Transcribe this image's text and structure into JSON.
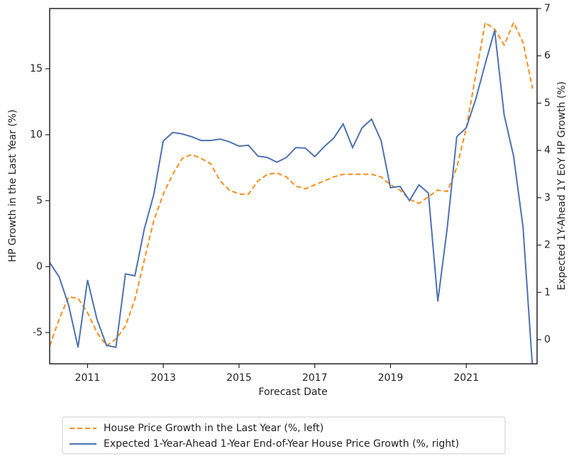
{
  "chart_data": {
    "type": "line",
    "xlabel": "Forecast Date",
    "ylabel": "HP Growth in the Last Year (%)",
    "y2label": "Expected 1Y-Ahead 1Y EoY HP Growth (%)",
    "x": [
      2010.0,
      2010.25,
      2010.5,
      2010.75,
      2011.0,
      2011.25,
      2011.5,
      2011.75,
      2012.0,
      2012.25,
      2012.5,
      2012.75,
      2013.0,
      2013.25,
      2013.5,
      2013.75,
      2014.0,
      2014.25,
      2014.5,
      2014.75,
      2015.0,
      2015.25,
      2015.5,
      2015.75,
      2016.0,
      2016.25,
      2016.5,
      2016.75,
      2017.0,
      2017.25,
      2017.5,
      2017.75,
      2018.0,
      2018.25,
      2018.5,
      2018.75,
      2019.0,
      2019.25,
      2019.5,
      2019.75,
      2020.0,
      2020.25,
      2020.5,
      2020.75,
      2021.0,
      2021.25,
      2021.5,
      2021.75,
      2022.0,
      2022.25,
      2022.5,
      2022.75
    ],
    "series": [
      {
        "name": "House Price Growth in the Last Year (%, left)",
        "color": "#ff8c1a",
        "dash": true,
        "axis": "y",
        "values": [
          -6.0,
          -4.0,
          -2.3,
          -2.4,
          -3.5,
          -5.0,
          -6.0,
          -5.5,
          -4.5,
          -2.5,
          0.5,
          3.5,
          5.5,
          7.0,
          8.2,
          8.5,
          8.2,
          7.8,
          6.5,
          5.8,
          5.5,
          5.5,
          6.5,
          7.0,
          7.1,
          6.8,
          6.1,
          5.9,
          6.2,
          6.5,
          6.8,
          7.0,
          7.0,
          7.0,
          7.0,
          6.8,
          6.2,
          5.8,
          5.1,
          4.8,
          5.3,
          5.8,
          5.7,
          7.5,
          10.5,
          14.5,
          18.5,
          18.0,
          16.8,
          18.5,
          17.0,
          13.5
        ]
      },
      {
        "name": "Expected 1-Year-Ahead 1-Year End-of-Year House Price Growth (%, right)",
        "color": "#4c72b0",
        "dash": false,
        "axis": "y2",
        "values": [
          1.63,
          1.33,
          0.73,
          -0.16,
          1.26,
          0.43,
          -0.12,
          -0.16,
          1.39,
          1.35,
          2.34,
          3.07,
          4.2,
          4.38,
          4.35,
          4.29,
          4.21,
          4.21,
          4.24,
          4.18,
          4.09,
          4.11,
          3.88,
          3.85,
          3.75,
          3.85,
          4.06,
          4.05,
          3.87,
          4.08,
          4.26,
          4.56,
          4.06,
          4.48,
          4.66,
          4.21,
          3.21,
          3.24,
          2.94,
          3.27,
          3.1,
          0.81,
          2.38,
          4.29,
          4.48,
          5.08,
          5.83,
          6.54,
          4.75,
          3.88,
          2.38,
          -0.6
        ]
      }
    ],
    "xlim": [
      2010.0,
      2022.87
    ],
    "xticks": [
      2011,
      2013,
      2015,
      2017,
      2019,
      2021
    ],
    "ylim": [
      -7.37,
      19.57
    ],
    "yticks": [
      -5,
      0,
      5,
      10,
      15
    ],
    "y2lim": [
      -0.51,
      7
    ],
    "y2ticks": [
      0,
      1,
      2,
      3,
      4,
      5,
      6,
      7
    ],
    "grid": false,
    "legend": "bottom"
  }
}
